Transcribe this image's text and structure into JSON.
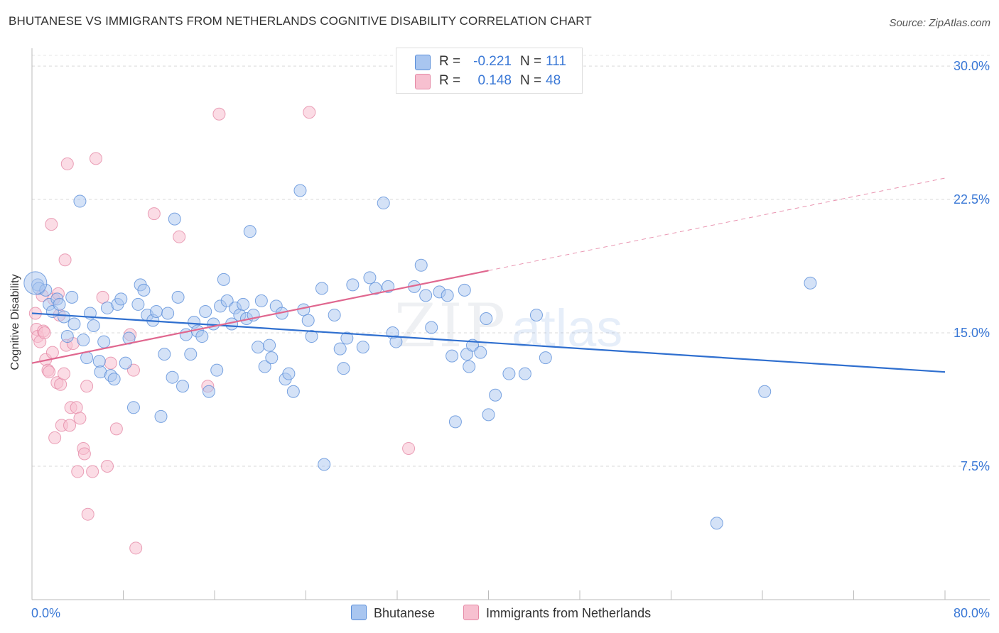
{
  "title": "BHUTANESE VS IMMIGRANTS FROM NETHERLANDS COGNITIVE DISABILITY CORRELATION CHART",
  "source": "Source: ZipAtlas.com",
  "watermark": {
    "zip": "ZIP",
    "atlas": "atlas"
  },
  "legend": {
    "rows": [
      {
        "r_label": "R =",
        "r_value": "-0.221",
        "n_label": "N =",
        "n_value": "111",
        "fill": "#a9c6f0",
        "stroke": "#5b8fd9"
      },
      {
        "r_label": "R =",
        "r_value": "0.148",
        "n_label": "N =",
        "n_value": "48",
        "fill": "#f7c0d0",
        "stroke": "#e58aa6"
      }
    ]
  },
  "bottom_legend": {
    "series1": "Bhutanese",
    "series2": "Immigrants from Netherlands"
  },
  "chart_data": {
    "type": "scatter",
    "xlabel": "",
    "ylabel": "Cognitive Disability",
    "xlim": [
      0,
      80
    ],
    "ylim": [
      0,
      31
    ],
    "x_tick_labels": [
      "0.0%",
      "80.0%"
    ],
    "y_ticks": [
      7.5,
      15.0,
      22.5,
      30.0
    ],
    "y_tick_labels": [
      "7.5%",
      "15.0%",
      "22.5%",
      "30.0%"
    ],
    "grid": true,
    "colors": {
      "blue_fill": "#a9c6f0",
      "blue_stroke": "#5b8fd9",
      "blue_line": "#2f6fcf",
      "pink_fill": "#f7c0d0",
      "pink_stroke": "#e58aa6",
      "pink_line": "#e0678f",
      "tick_label": "#3a78d6"
    },
    "series": [
      {
        "name": "Bhutanese",
        "trend": {
          "x0": 0,
          "y0": 16.1,
          "x1": 80,
          "y1": 12.8,
          "dashed_from": null
        },
        "points": [
          [
            0.5,
            17.7
          ],
          [
            0.6,
            17.5
          ],
          [
            1.2,
            17.4
          ],
          [
            1.5,
            16.6
          ],
          [
            1.8,
            16.2
          ],
          [
            2.2,
            16.9
          ],
          [
            2.4,
            16.6
          ],
          [
            2.8,
            15.9
          ],
          [
            3.1,
            14.8
          ],
          [
            3.5,
            17.0
          ],
          [
            3.7,
            15.5
          ],
          [
            4.5,
            14.6
          ],
          [
            4.8,
            13.6
          ],
          [
            5.1,
            16.1
          ],
          [
            5.4,
            15.4
          ],
          [
            4.2,
            22.4
          ],
          [
            5.9,
            13.4
          ],
          [
            6.0,
            12.8
          ],
          [
            6.3,
            14.5
          ],
          [
            6.6,
            16.4
          ],
          [
            6.9,
            12.6
          ],
          [
            7.2,
            12.4
          ],
          [
            7.5,
            16.6
          ],
          [
            7.8,
            16.9
          ],
          [
            8.2,
            13.3
          ],
          [
            8.5,
            14.7
          ],
          [
            8.9,
            10.8
          ],
          [
            9.3,
            16.6
          ],
          [
            9.5,
            17.7
          ],
          [
            9.8,
            17.4
          ],
          [
            10.1,
            16.0
          ],
          [
            10.6,
            15.7
          ],
          [
            10.9,
            16.2
          ],
          [
            11.3,
            10.3
          ],
          [
            11.6,
            13.8
          ],
          [
            11.9,
            16.1
          ],
          [
            12.3,
            12.5
          ],
          [
            12.5,
            21.4
          ],
          [
            12.8,
            17.0
          ],
          [
            13.2,
            12.0
          ],
          [
            13.5,
            14.9
          ],
          [
            13.9,
            13.8
          ],
          [
            14.2,
            15.6
          ],
          [
            14.5,
            15.1
          ],
          [
            14.9,
            14.8
          ],
          [
            15.2,
            16.2
          ],
          [
            15.5,
            11.7
          ],
          [
            15.9,
            15.5
          ],
          [
            16.2,
            12.9
          ],
          [
            16.5,
            16.5
          ],
          [
            16.8,
            18.0
          ],
          [
            17.1,
            16.8
          ],
          [
            17.5,
            15.5
          ],
          [
            17.8,
            16.4
          ],
          [
            18.2,
            16.0
          ],
          [
            18.5,
            16.6
          ],
          [
            18.8,
            15.8
          ],
          [
            19.1,
            20.7
          ],
          [
            19.4,
            16.0
          ],
          [
            19.8,
            14.2
          ],
          [
            20.1,
            16.8
          ],
          [
            20.4,
            13.1
          ],
          [
            20.8,
            14.3
          ],
          [
            21.0,
            13.6
          ],
          [
            21.4,
            16.5
          ],
          [
            21.9,
            16.1
          ],
          [
            22.2,
            12.4
          ],
          [
            22.5,
            12.7
          ],
          [
            22.9,
            11.7
          ],
          [
            23.5,
            23.0
          ],
          [
            23.8,
            16.3
          ],
          [
            24.2,
            15.7
          ],
          [
            24.5,
            14.8
          ],
          [
            25.4,
            17.5
          ],
          [
            25.6,
            7.6
          ],
          [
            26.5,
            16.0
          ],
          [
            27.0,
            14.1
          ],
          [
            27.3,
            13.0
          ],
          [
            27.6,
            14.7
          ],
          [
            28.1,
            17.7
          ],
          [
            29.0,
            14.2
          ],
          [
            29.6,
            18.1
          ],
          [
            30.1,
            17.5
          ],
          [
            30.8,
            22.3
          ],
          [
            31.2,
            17.6
          ],
          [
            31.6,
            15.0
          ],
          [
            31.9,
            14.5
          ],
          [
            33.5,
            17.6
          ],
          [
            34.1,
            18.8
          ],
          [
            34.5,
            17.1
          ],
          [
            35.0,
            15.3
          ],
          [
            35.7,
            17.3
          ],
          [
            36.4,
            17.1
          ],
          [
            36.8,
            13.7
          ],
          [
            37.1,
            10.0
          ],
          [
            37.9,
            17.4
          ],
          [
            38.1,
            13.8
          ],
          [
            38.3,
            13.1
          ],
          [
            38.6,
            14.3
          ],
          [
            39.3,
            13.9
          ],
          [
            39.8,
            15.8
          ],
          [
            40.0,
            10.4
          ],
          [
            40.6,
            11.5
          ],
          [
            41.8,
            12.7
          ],
          [
            43.2,
            12.7
          ],
          [
            44.2,
            16.0
          ],
          [
            45.0,
            13.6
          ],
          [
            60.0,
            4.3
          ],
          [
            64.2,
            11.7
          ],
          [
            68.2,
            17.8
          ],
          [
            0.3,
            17.8
          ]
        ]
      },
      {
        "name": "Immigrants from Netherlands",
        "trend": {
          "x0": 0,
          "y0": 13.3,
          "x1": 80,
          "y1": 23.7,
          "dashed_from": 40
        },
        "points": [
          [
            0.3,
            16.1
          ],
          [
            0.4,
            15.2
          ],
          [
            0.5,
            14.8
          ],
          [
            0.7,
            14.5
          ],
          [
            0.9,
            17.1
          ],
          [
            1.0,
            15.1
          ],
          [
            1.2,
            13.5
          ],
          [
            1.4,
            12.9
          ],
          [
            1.5,
            12.8
          ],
          [
            1.7,
            21.1
          ],
          [
            1.8,
            13.9
          ],
          [
            1.9,
            16.9
          ],
          [
            2.0,
            9.1
          ],
          [
            2.2,
            12.2
          ],
          [
            2.3,
            17.2
          ],
          [
            2.5,
            12.1
          ],
          [
            2.6,
            9.8
          ],
          [
            2.8,
            12.7
          ],
          [
            2.9,
            19.1
          ],
          [
            3.0,
            14.3
          ],
          [
            3.1,
            24.5
          ],
          [
            3.3,
            9.8
          ],
          [
            3.4,
            10.8
          ],
          [
            3.6,
            14.4
          ],
          [
            3.9,
            10.8
          ],
          [
            4.0,
            7.2
          ],
          [
            4.2,
            10.2
          ],
          [
            4.5,
            8.5
          ],
          [
            4.6,
            8.2
          ],
          [
            4.8,
            12.0
          ],
          [
            4.9,
            4.8
          ],
          [
            5.3,
            7.2
          ],
          [
            5.6,
            24.8
          ],
          [
            6.2,
            17.0
          ],
          [
            6.6,
            7.5
          ],
          [
            6.9,
            13.3
          ],
          [
            7.4,
            9.6
          ],
          [
            8.6,
            14.9
          ],
          [
            8.9,
            12.9
          ],
          [
            9.1,
            2.9
          ],
          [
            10.7,
            21.7
          ],
          [
            12.9,
            20.4
          ],
          [
            15.4,
            12.0
          ],
          [
            16.4,
            27.3
          ],
          [
            24.3,
            27.4
          ],
          [
            33.0,
            8.5
          ],
          [
            1.1,
            15.0
          ],
          [
            2.4,
            16.0
          ]
        ]
      }
    ]
  }
}
